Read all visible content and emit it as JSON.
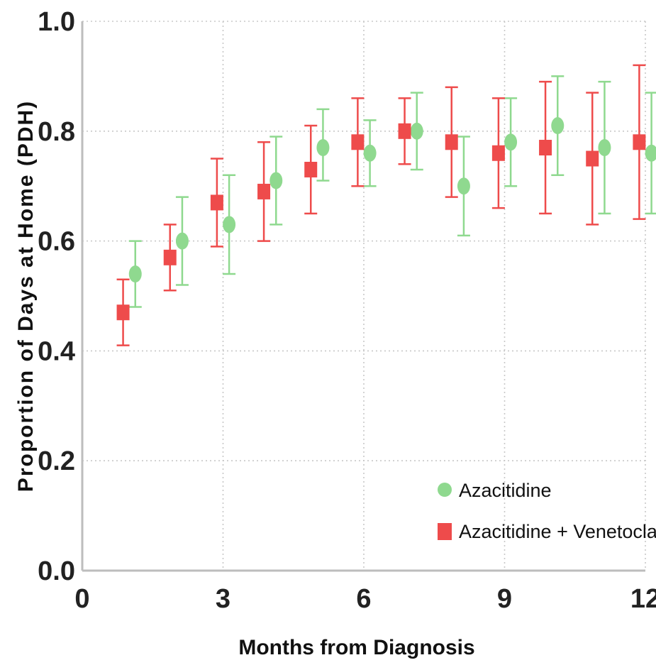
{
  "chart_data": {
    "type": "scatter",
    "subtype": "point-with-error-bars",
    "xlabel": "Months from Diagnosis",
    "ylabel": "Proportion of Days at  Home (PDH)",
    "xlim": [
      0,
      12
    ],
    "ylim": [
      0.0,
      1.0
    ],
    "xticks": [
      0,
      3,
      6,
      9,
      12
    ],
    "xtick_labels": [
      "0",
      "3",
      "6",
      "9",
      "12"
    ],
    "yticks": [
      0.0,
      0.2,
      0.4,
      0.6,
      0.8,
      1.0
    ],
    "ytick_labels": [
      "0.0",
      "0.2",
      "0.4",
      "0.6",
      "0.8",
      "1.0"
    ],
    "grid": "dotted horizontal and vertical",
    "legend_position": "bottom-right",
    "series": [
      {
        "name": "Azacitidine",
        "marker": "circle",
        "color": "#8fd98f",
        "points": [
          {
            "month": 1,
            "value": 0.54,
            "lower": 0.48,
            "upper": 0.6
          },
          {
            "month": 2,
            "value": 0.6,
            "lower": 0.52,
            "upper": 0.68
          },
          {
            "month": 3,
            "value": 0.63,
            "lower": 0.54,
            "upper": 0.72
          },
          {
            "month": 4,
            "value": 0.71,
            "lower": 0.63,
            "upper": 0.79
          },
          {
            "month": 5,
            "value": 0.77,
            "lower": 0.71,
            "upper": 0.84
          },
          {
            "month": 6,
            "value": 0.76,
            "lower": 0.7,
            "upper": 0.82
          },
          {
            "month": 7,
            "value": 0.8,
            "lower": 0.73,
            "upper": 0.87
          },
          {
            "month": 8,
            "value": 0.7,
            "lower": 0.61,
            "upper": 0.79
          },
          {
            "month": 9,
            "value": 0.78,
            "lower": 0.7,
            "upper": 0.86
          },
          {
            "month": 10,
            "value": 0.81,
            "lower": 0.72,
            "upper": 0.9
          },
          {
            "month": 11,
            "value": 0.77,
            "lower": 0.65,
            "upper": 0.89
          },
          {
            "month": 12,
            "value": 0.76,
            "lower": 0.65,
            "upper": 0.87
          }
        ]
      },
      {
        "name": "Azacitidine + Venetoclax",
        "marker": "square",
        "color": "#ee4b4b",
        "points": [
          {
            "month": 1,
            "value": 0.47,
            "lower": 0.41,
            "upper": 0.53
          },
          {
            "month": 2,
            "value": 0.57,
            "lower": 0.51,
            "upper": 0.63
          },
          {
            "month": 3,
            "value": 0.67,
            "lower": 0.59,
            "upper": 0.75
          },
          {
            "month": 4,
            "value": 0.69,
            "lower": 0.6,
            "upper": 0.78
          },
          {
            "month": 5,
            "value": 0.73,
            "lower": 0.65,
            "upper": 0.81
          },
          {
            "month": 6,
            "value": 0.78,
            "lower": 0.7,
            "upper": 0.86
          },
          {
            "month": 7,
            "value": 0.8,
            "lower": 0.74,
            "upper": 0.86
          },
          {
            "month": 8,
            "value": 0.78,
            "lower": 0.68,
            "upper": 0.88
          },
          {
            "month": 9,
            "value": 0.76,
            "lower": 0.66,
            "upper": 0.86
          },
          {
            "month": 10,
            "value": 0.77,
            "lower": 0.65,
            "upper": 0.89
          },
          {
            "month": 11,
            "value": 0.75,
            "lower": 0.63,
            "upper": 0.87
          },
          {
            "month": 12,
            "value": 0.78,
            "lower": 0.64,
            "upper": 0.92
          }
        ]
      }
    ]
  }
}
